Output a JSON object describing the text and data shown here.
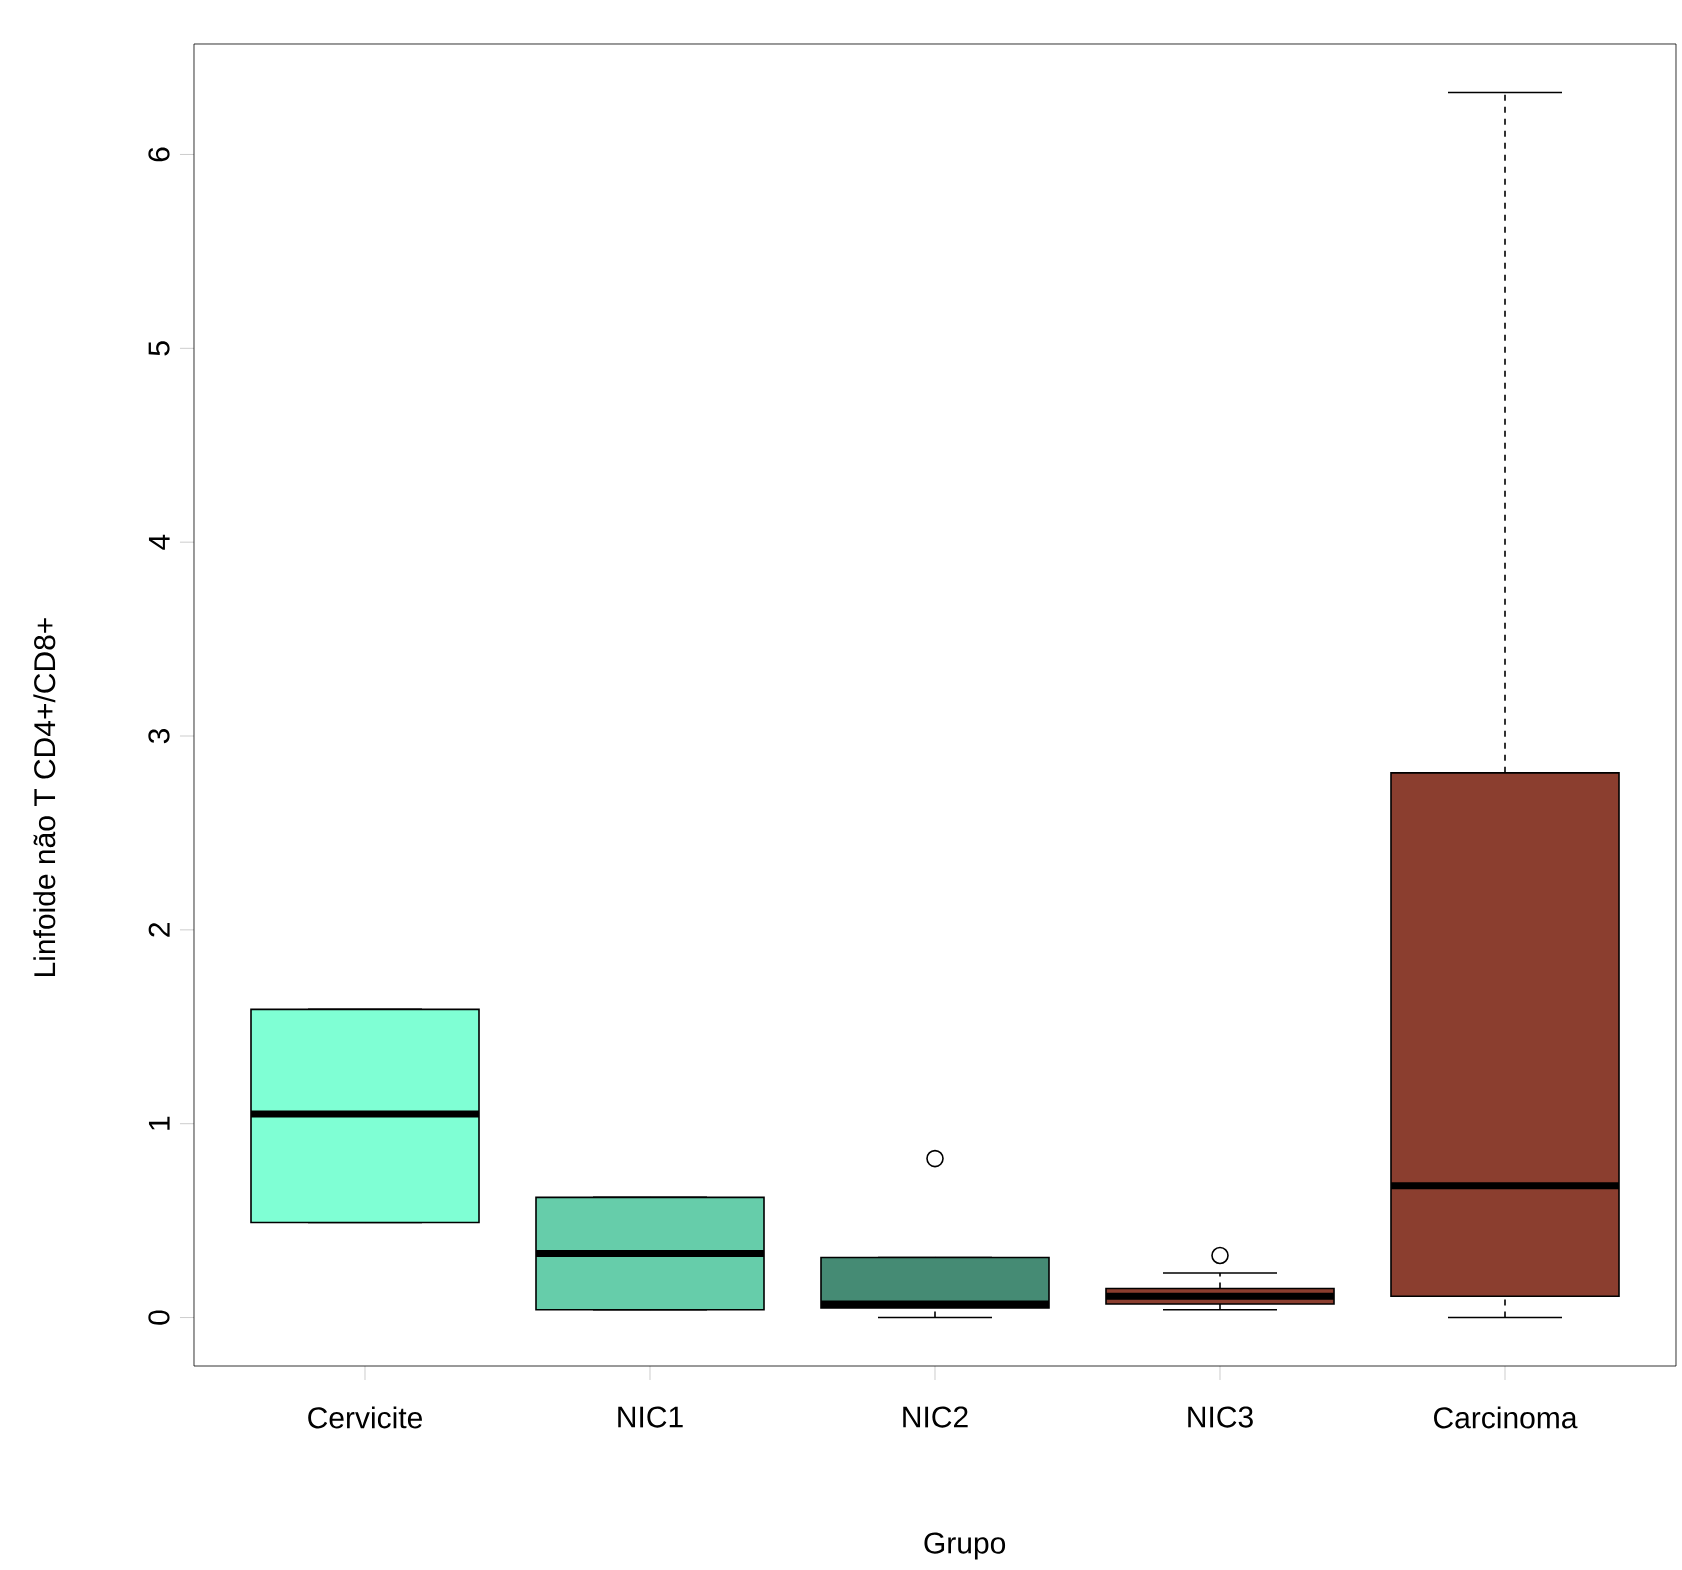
{
  "chart_data": {
    "type": "box",
    "xlabel": "Grupo",
    "ylabel": "Linfoide não T CD4+/CD8+",
    "categories": [
      "Cervicite",
      "NIC1",
      "NIC2",
      "NIC3",
      "Carcinoma"
    ],
    "colors": [
      "#7fffd4",
      "#66cdaa",
      "#458b74",
      "#8b3e2f",
      "#8b3e2f"
    ],
    "boxes": [
      {
        "low": 0.49,
        "q1": 0.49,
        "median": 1.05,
        "q3": 1.59,
        "high": 1.59
      },
      {
        "low": 0.04,
        "q1": 0.04,
        "median": 0.33,
        "q3": 0.62,
        "high": 0.62
      },
      {
        "low": 0.0,
        "q1": 0.05,
        "median": 0.07,
        "q3": 0.31,
        "high": 0.31,
        "outliers": [
          0.82
        ]
      },
      {
        "low": 0.04,
        "q1": 0.07,
        "median": 0.11,
        "q3": 0.15,
        "high": 0.23,
        "outliers": [
          0.32
        ]
      },
      {
        "low": 0.0,
        "q1": 0.11,
        "median": 0.68,
        "q3": 2.81,
        "high": 6.32
      }
    ],
    "ylim": [
      -0.25,
      6.57
    ],
    "yticks": [
      0,
      1,
      2,
      3,
      4,
      5,
      6
    ]
  }
}
